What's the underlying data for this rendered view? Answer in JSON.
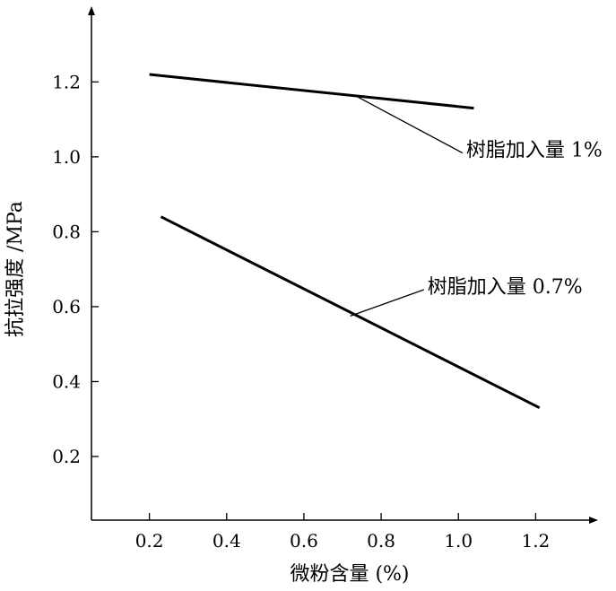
{
  "chart_data": {
    "type": "line",
    "title": "",
    "xlabel": "微粉含量 (%)",
    "ylabel": "抗拉强度 /MPa",
    "xlim": [
      0.05,
      1.35
    ],
    "ylim": [
      0.03,
      1.39
    ],
    "xticks": [
      0.2,
      0.4,
      0.6,
      0.8,
      1.0,
      1.2
    ],
    "xtick_labels": [
      "0.2",
      "0.4",
      "0.6",
      "0.8",
      "1.0",
      "1.2"
    ],
    "yticks": [
      0.2,
      0.4,
      0.6,
      0.8,
      1.0,
      1.2
    ],
    "ytick_labels": [
      "0.2",
      "0.4",
      "0.6",
      "0.8",
      "1.0",
      "1.2"
    ],
    "grid": false,
    "legend": "none",
    "series": [
      {
        "name": "树脂加入量 1%",
        "x": [
          0.2,
          1.04
        ],
        "y": [
          1.22,
          1.13
        ],
        "color": "#000000",
        "annotation_anchor": [
          0.73,
          1.165
        ],
        "annotation_text_pos": [
          1.02,
          1.02
        ]
      },
      {
        "name": "树脂加入量 0.7%",
        "x": [
          0.23,
          1.21
        ],
        "y": [
          0.84,
          0.33
        ],
        "color": "#000000",
        "annotation_anchor": [
          0.72,
          0.575
        ],
        "annotation_text_pos": [
          0.92,
          0.655
        ]
      }
    ]
  }
}
